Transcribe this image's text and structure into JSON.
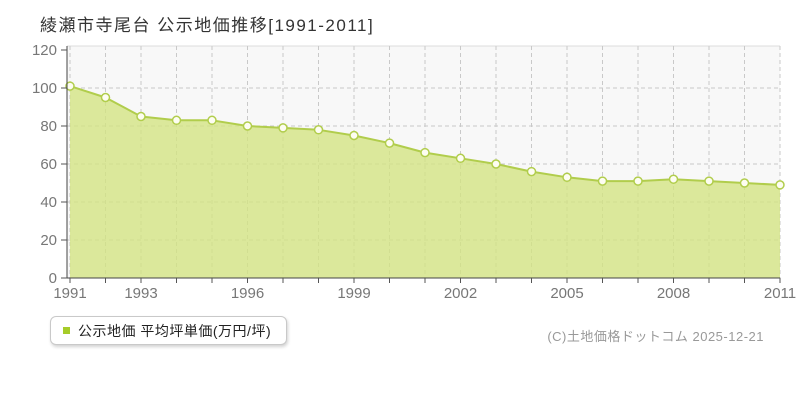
{
  "title": "綾瀬市寺尾台 公示地価推移[1991-2011]",
  "legend": {
    "label": "公示地価 平均坪単価(万円/坪)",
    "marker_color": "#a6cc29"
  },
  "footer": {
    "copyright": "(C)土地価格ドットコム 2025-12-21"
  },
  "chart_data": {
    "type": "area",
    "title": "綾瀬市寺尾台 公示地価推移[1991-2011]",
    "series_name": "公示地価 平均坪単価(万円/坪)",
    "x": [
      1991,
      1992,
      1993,
      1994,
      1995,
      1996,
      1997,
      1998,
      1999,
      2000,
      2001,
      2002,
      2003,
      2004,
      2005,
      2006,
      2007,
      2008,
      2009,
      2010,
      2011
    ],
    "values": [
      101,
      95,
      85,
      83,
      83,
      80,
      79,
      78,
      75,
      71,
      66,
      63,
      60,
      56,
      53,
      51,
      51,
      52,
      51,
      50,
      49
    ],
    "ylabel": "",
    "xlabel": "",
    "ylim": [
      0,
      120
    ],
    "ytick_interval": 20,
    "xticks_labeled": [
      1991,
      1993,
      1996,
      1999,
      2002,
      2005,
      2008,
      2011
    ],
    "grid": true,
    "legend_position": "bottom-left",
    "colors": {
      "plot_bg": "#f8f8f8",
      "grid": "#c9c9c9",
      "top_border": "#dddddd",
      "axis": "#444444",
      "tick": "#555555",
      "tick_label": "#777777",
      "area_fill": "#d3e383",
      "line": "#b1cd4c",
      "marker_fill": "#fdfdf1"
    }
  }
}
